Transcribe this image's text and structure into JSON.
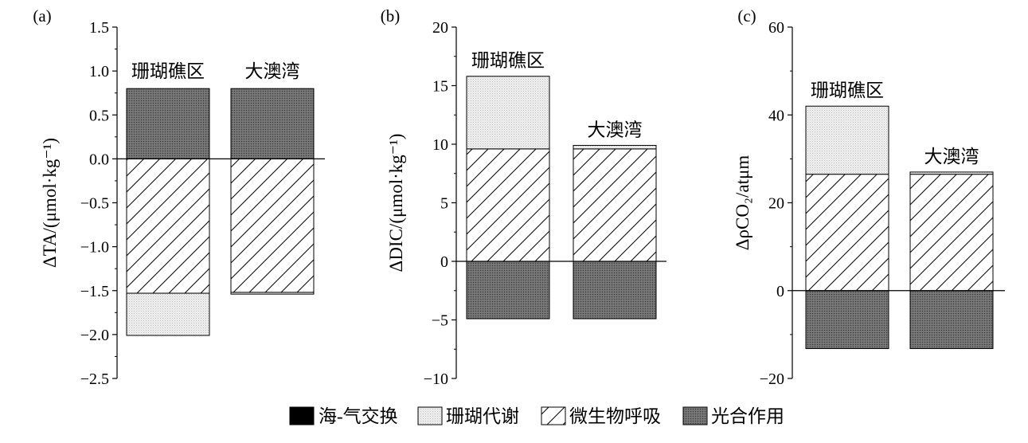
{
  "legend": [
    {
      "key": "exchange",
      "label": "海-气交换",
      "fill": "#000000"
    },
    {
      "key": "coral",
      "label": "珊瑚代谢",
      "fill": "pat-coral"
    },
    {
      "key": "microbe",
      "label": "微生物呼吸",
      "fill": "pat-hatch"
    },
    {
      "key": "photo",
      "label": "光合作用",
      "fill": "pat-photo"
    }
  ],
  "colors": {
    "coral_base": "#f0f0f0",
    "photo_base": "#6e6e6e",
    "exchange": "#000000"
  },
  "chart_data": [
    {
      "type": "bar",
      "stacked": true,
      "panel_label": "(a)",
      "ylabel": "ΔTA/(μmol·kg⁻¹)",
      "ylim": [
        -2.5,
        1.5
      ],
      "yticks": [
        -2.5,
        -2.0,
        -1.5,
        -1.0,
        -0.5,
        0.0,
        0.5,
        1.0,
        1.5
      ],
      "tick_labels": [
        "−2.5",
        "−2.0",
        "−1.5",
        "−1.0",
        "−0.5",
        "0.0",
        "0.5",
        "1.0",
        "1.5"
      ],
      "categories": [
        "珊瑚礁区",
        "大澳湾"
      ],
      "series": [
        {
          "name": "海-气交换",
          "key": "exchange",
          "values": [
            0.0,
            0.0
          ]
        },
        {
          "name": "珊瑚代谢",
          "key": "coral",
          "values": [
            -0.48,
            -0.02
          ]
        },
        {
          "name": "微生物呼吸",
          "key": "microbe",
          "values": [
            -1.53,
            -1.52
          ]
        },
        {
          "name": "光合作用",
          "key": "photo",
          "values": [
            0.8,
            0.8
          ]
        }
      ]
    },
    {
      "type": "bar",
      "stacked": true,
      "panel_label": "(b)",
      "ylabel": "ΔDIC/(μmol·kg⁻¹)",
      "ylim": [
        -10,
        20
      ],
      "yticks": [
        -10,
        -5,
        0,
        5,
        10,
        15,
        20
      ],
      "tick_labels": [
        "−10",
        "−5",
        "0",
        "5",
        "10",
        "15",
        "20"
      ],
      "categories": [
        "珊瑚礁区",
        "大澳湾"
      ],
      "series": [
        {
          "name": "海-气交换",
          "key": "exchange",
          "values": [
            0.0,
            0.0
          ]
        },
        {
          "name": "珊瑚代谢",
          "key": "coral",
          "values": [
            6.2,
            0.3
          ]
        },
        {
          "name": "微生物呼吸",
          "key": "microbe",
          "values": [
            9.6,
            9.6
          ]
        },
        {
          "name": "光合作用",
          "key": "photo",
          "values": [
            -4.9,
            -4.9
          ]
        }
      ]
    },
    {
      "type": "bar",
      "stacked": true,
      "panel_label": "(c)",
      "ylabel": "ΔρCO₂/atμm",
      "ylim": [
        -20,
        60
      ],
      "yticks": [
        -20,
        0,
        20,
        40,
        60
      ],
      "tick_labels": [
        "−20",
        "0",
        "20",
        "40",
        "60"
      ],
      "categories": [
        "珊瑚礁区",
        "大澳湾"
      ],
      "series": [
        {
          "name": "海-气交换",
          "key": "exchange",
          "values": [
            0.0,
            0.0
          ]
        },
        {
          "name": "珊瑚代谢",
          "key": "coral",
          "values": [
            15.5,
            0.5
          ]
        },
        {
          "name": "微生物呼吸",
          "key": "microbe",
          "values": [
            26.5,
            26.5
          ]
        },
        {
          "name": "光合作用",
          "key": "photo",
          "values": [
            -13.2,
            -13.2
          ]
        }
      ]
    }
  ]
}
